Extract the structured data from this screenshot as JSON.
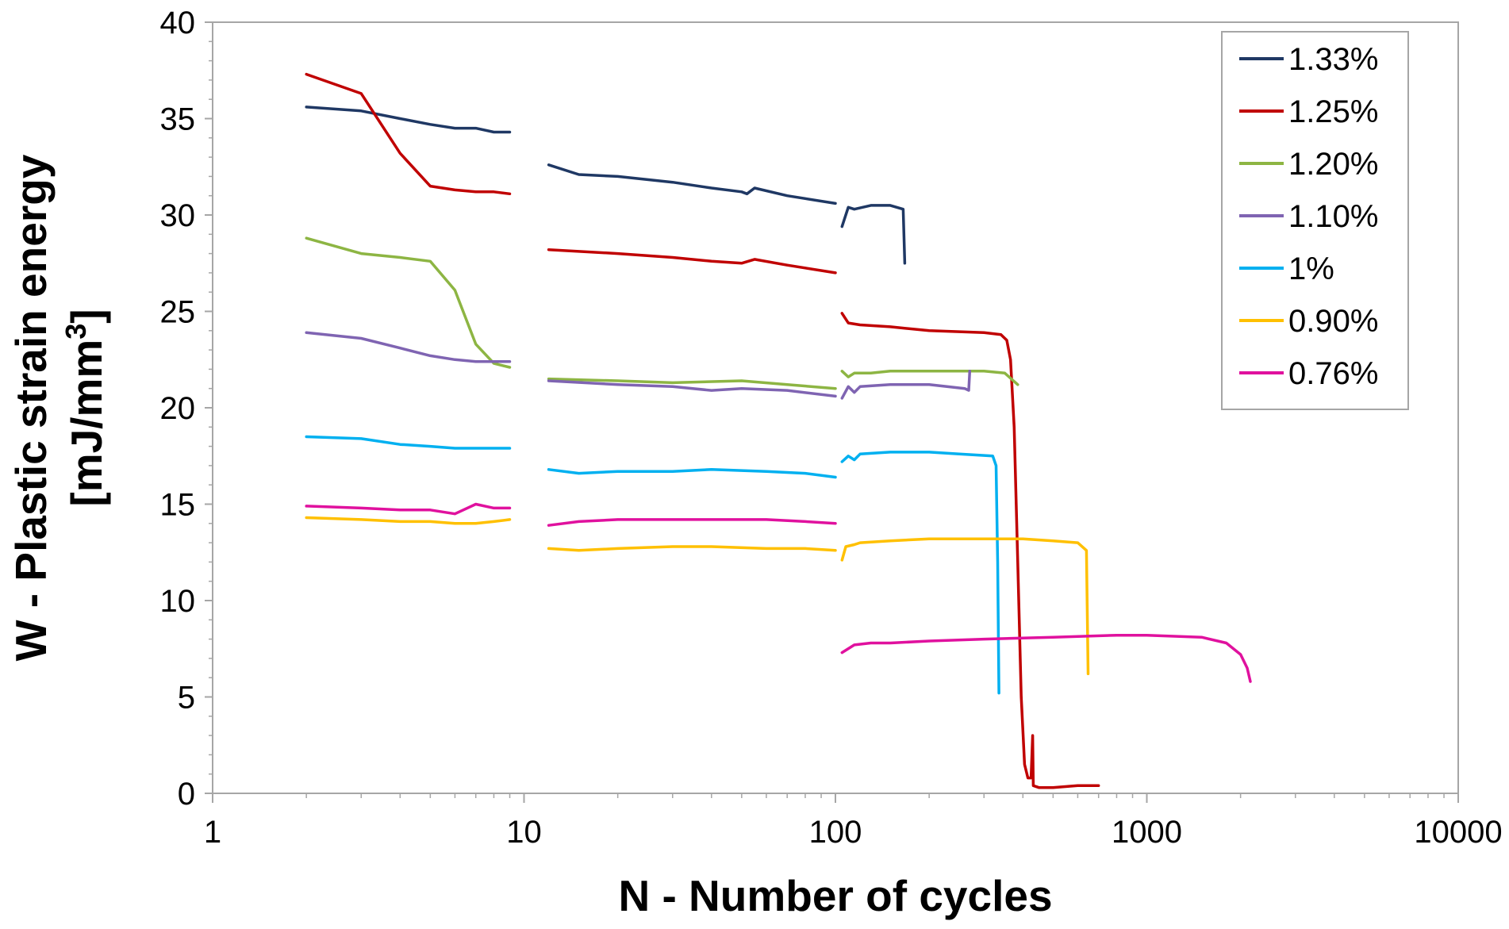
{
  "chart_data": {
    "type": "line",
    "xlabel": "N - Number of cycles",
    "ylabel_line1": "W - Plastic strain energy",
    "ylabel_line2_prefix": "[mJ/mm",
    "ylabel_sup": "3",
    "ylabel_line2_suffix": "]",
    "x_scale": "log",
    "xlim": [
      1,
      10000
    ],
    "ylim": [
      0,
      40
    ],
    "x_ticks": [
      1,
      10,
      100,
      1000,
      10000
    ],
    "x_tick_labels": [
      "1",
      "10",
      "100",
      "1000",
      "10000"
    ],
    "y_ticks": [
      0,
      5,
      10,
      15,
      20,
      25,
      30,
      35,
      40
    ],
    "y_tick_labels": [
      "0",
      "5",
      "10",
      "15",
      "20",
      "25",
      "30",
      "35",
      "40"
    ],
    "grid": false,
    "legend_position": "top-right",
    "series": [
      {
        "name": "1.33%",
        "color": "#1f3864",
        "segments": [
          [
            [
              2,
              35.6
            ],
            [
              3,
              35.4
            ],
            [
              4,
              35.0
            ],
            [
              5,
              34.7
            ],
            [
              6,
              34.5
            ],
            [
              7,
              34.5
            ],
            [
              8,
              34.3
            ],
            [
              9,
              34.3
            ]
          ],
          [
            [
              12,
              32.6
            ],
            [
              15,
              32.1
            ],
            [
              20,
              32.0
            ],
            [
              30,
              31.7
            ],
            [
              40,
              31.4
            ],
            [
              50,
              31.2
            ],
            [
              52,
              31.1
            ],
            [
              55,
              31.4
            ],
            [
              70,
              31.0
            ],
            [
              100,
              30.6
            ]
          ],
          [
            [
              105,
              29.4
            ],
            [
              110,
              30.4
            ],
            [
              115,
              30.3
            ],
            [
              130,
              30.5
            ],
            [
              150,
              30.5
            ],
            [
              165,
              30.3
            ],
            [
              167,
              27.5
            ]
          ]
        ]
      },
      {
        "name": "1.25%",
        "color": "#c00000",
        "segments": [
          [
            [
              2,
              37.3
            ],
            [
              3,
              36.3
            ],
            [
              4,
              33.2
            ],
            [
              5,
              31.5
            ],
            [
              6,
              31.3
            ],
            [
              7,
              31.2
            ],
            [
              8,
              31.2
            ],
            [
              9,
              31.1
            ]
          ],
          [
            [
              12,
              28.2
            ],
            [
              20,
              28.0
            ],
            [
              30,
              27.8
            ],
            [
              40,
              27.6
            ],
            [
              50,
              27.5
            ],
            [
              55,
              27.7
            ],
            [
              70,
              27.4
            ],
            [
              100,
              27.0
            ]
          ],
          [
            [
              105,
              24.9
            ],
            [
              110,
              24.4
            ],
            [
              120,
              24.3
            ],
            [
              150,
              24.2
            ],
            [
              200,
              24.0
            ],
            [
              300,
              23.9
            ],
            [
              340,
              23.8
            ],
            [
              355,
              23.5
            ],
            [
              365,
              22.5
            ],
            [
              375,
              19.0
            ],
            [
              385,
              12.0
            ],
            [
              395,
              5.0
            ],
            [
              405,
              1.5
            ],
            [
              415,
              0.8
            ],
            [
              425,
              0.8
            ],
            [
              430,
              3.0
            ],
            [
              432,
              0.4
            ],
            [
              450,
              0.3
            ],
            [
              500,
              0.3
            ],
            [
              600,
              0.4
            ],
            [
              700,
              0.4
            ]
          ]
        ]
      },
      {
        "name": "1.20%",
        "color": "#8db543",
        "segments": [
          [
            [
              2,
              28.8
            ],
            [
              3,
              28.0
            ],
            [
              4,
              27.8
            ],
            [
              5,
              27.6
            ],
            [
              6,
              26.1
            ],
            [
              7,
              23.3
            ],
            [
              8,
              22.3
            ],
            [
              9,
              22.1
            ]
          ],
          [
            [
              12,
              21.5
            ],
            [
              20,
              21.4
            ],
            [
              30,
              21.3
            ],
            [
              50,
              21.4
            ],
            [
              70,
              21.2
            ],
            [
              100,
              21.0
            ]
          ],
          [
            [
              105,
              21.9
            ],
            [
              110,
              21.6
            ],
            [
              115,
              21.8
            ],
            [
              130,
              21.8
            ],
            [
              150,
              21.9
            ],
            [
              200,
              21.9
            ],
            [
              250,
              21.9
            ],
            [
              300,
              21.9
            ],
            [
              350,
              21.8
            ],
            [
              385,
              21.2
            ]
          ]
        ]
      },
      {
        "name": "1.10%",
        "color": "#7f64b2",
        "segments": [
          [
            [
              2,
              23.9
            ],
            [
              3,
              23.6
            ],
            [
              4,
              23.1
            ],
            [
              5,
              22.7
            ],
            [
              6,
              22.5
            ],
            [
              7,
              22.4
            ],
            [
              8,
              22.4
            ],
            [
              9,
              22.4
            ]
          ],
          [
            [
              12,
              21.4
            ],
            [
              20,
              21.2
            ],
            [
              30,
              21.1
            ],
            [
              40,
              20.9
            ],
            [
              50,
              21.0
            ],
            [
              70,
              20.9
            ],
            [
              100,
              20.6
            ]
          ],
          [
            [
              105,
              20.5
            ],
            [
              110,
              21.1
            ],
            [
              115,
              20.8
            ],
            [
              120,
              21.1
            ],
            [
              150,
              21.2
            ],
            [
              200,
              21.2
            ],
            [
              260,
              21.0
            ],
            [
              268,
              20.9
            ],
            [
              270,
              21.9
            ]
          ]
        ]
      },
      {
        "name": "1%",
        "color": "#00b0f0",
        "segments": [
          [
            [
              2,
              18.5
            ],
            [
              3,
              18.4
            ],
            [
              4,
              18.1
            ],
            [
              5,
              18.0
            ],
            [
              6,
              17.9
            ],
            [
              7,
              17.9
            ],
            [
              8,
              17.9
            ],
            [
              9,
              17.9
            ]
          ],
          [
            [
              12,
              16.8
            ],
            [
              15,
              16.6
            ],
            [
              20,
              16.7
            ],
            [
              30,
              16.7
            ],
            [
              40,
              16.8
            ],
            [
              60,
              16.7
            ],
            [
              80,
              16.6
            ],
            [
              100,
              16.4
            ]
          ],
          [
            [
              105,
              17.2
            ],
            [
              110,
              17.5
            ],
            [
              115,
              17.3
            ],
            [
              120,
              17.6
            ],
            [
              150,
              17.7
            ],
            [
              200,
              17.7
            ],
            [
              250,
              17.6
            ],
            [
              320,
              17.5
            ],
            [
              328,
              17.0
            ],
            [
              332,
              12.0
            ],
            [
              335,
              5.2
            ]
          ]
        ]
      },
      {
        "name": "0.90%",
        "color": "#ffc000",
        "segments": [
          [
            [
              2,
              14.3
            ],
            [
              3,
              14.2
            ],
            [
              4,
              14.1
            ],
            [
              5,
              14.1
            ],
            [
              6,
              14.0
            ],
            [
              7,
              14.0
            ],
            [
              8,
              14.1
            ],
            [
              9,
              14.2
            ]
          ],
          [
            [
              12,
              12.7
            ],
            [
              15,
              12.6
            ],
            [
              20,
              12.7
            ],
            [
              30,
              12.8
            ],
            [
              40,
              12.8
            ],
            [
              60,
              12.7
            ],
            [
              80,
              12.7
            ],
            [
              100,
              12.6
            ]
          ],
          [
            [
              105,
              12.1
            ],
            [
              108,
              12.8
            ],
            [
              115,
              12.9
            ],
            [
              120,
              13.0
            ],
            [
              150,
              13.1
            ],
            [
              200,
              13.2
            ],
            [
              300,
              13.2
            ],
            [
              400,
              13.2
            ],
            [
              500,
              13.1
            ],
            [
              600,
              13.0
            ],
            [
              640,
              12.6
            ],
            [
              648,
              6.2
            ]
          ]
        ]
      },
      {
        "name": "0.76%",
        "color": "#e0119e",
        "segments": [
          [
            [
              2,
              14.9
            ],
            [
              3,
              14.8
            ],
            [
              4,
              14.7
            ],
            [
              5,
              14.7
            ],
            [
              6,
              14.5
            ],
            [
              7,
              15.0
            ],
            [
              8,
              14.8
            ],
            [
              9,
              14.8
            ]
          ],
          [
            [
              12,
              13.9
            ],
            [
              15,
              14.1
            ],
            [
              20,
              14.2
            ],
            [
              30,
              14.2
            ],
            [
              40,
              14.2
            ],
            [
              60,
              14.2
            ],
            [
              80,
              14.1
            ],
            [
              100,
              14.0
            ]
          ],
          [
            [
              105,
              7.3
            ],
            [
              115,
              7.7
            ],
            [
              130,
              7.8
            ],
            [
              150,
              7.8
            ],
            [
              200,
              7.9
            ],
            [
              300,
              8.0
            ],
            [
              500,
              8.1
            ],
            [
              800,
              8.2
            ],
            [
              1000,
              8.2
            ],
            [
              1500,
              8.1
            ],
            [
              1800,
              7.8
            ],
            [
              2000,
              7.2
            ],
            [
              2100,
              6.5
            ],
            [
              2150,
              5.8
            ]
          ]
        ]
      }
    ]
  }
}
